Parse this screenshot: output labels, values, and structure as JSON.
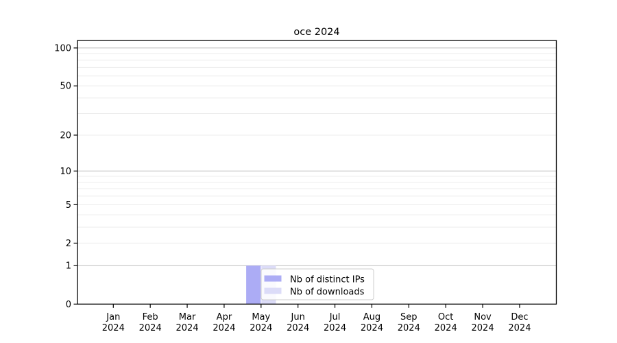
{
  "chart_data": {
    "type": "bar",
    "title": "oce 2024",
    "categories": [
      "Jan 2024",
      "Feb 2024",
      "Mar 2024",
      "Apr 2024",
      "May 2024",
      "Jun 2024",
      "Jul 2024",
      "Aug 2024",
      "Sep 2024",
      "Oct 2024",
      "Nov 2024",
      "Dec 2024"
    ],
    "series": [
      {
        "name": "Nb of distinct IPs",
        "color": "#acacf5",
        "values": [
          0,
          0,
          0,
          0,
          1,
          0,
          0,
          0,
          0,
          0,
          0,
          0
        ]
      },
      {
        "name": "Nb of downloads",
        "color": "#dcdcf8",
        "values": [
          0,
          0,
          0,
          0,
          1,
          0,
          0,
          0,
          0,
          0,
          0,
          0
        ]
      }
    ],
    "y_axis": {
      "scale": "log1p",
      "tick_labels": [
        "0",
        "1",
        "2",
        "5",
        "10",
        "20",
        "50",
        "100"
      ],
      "tick_values": [
        0,
        1,
        2,
        5,
        10,
        20,
        50,
        100
      ],
      "major_gridlines": [
        1,
        10,
        100
      ],
      "minor_gridlines": [
        2,
        3,
        4,
        5,
        6,
        7,
        8,
        9,
        20,
        30,
        40,
        50,
        60,
        70,
        80,
        90
      ],
      "range_top": 114
    },
    "x_axis": {
      "year_label": "2024"
    },
    "legend": {
      "position": "inside-bottom-near-may"
    },
    "colors": {
      "major_gridline": "#bdbdbd",
      "minor_gridline": "#ececec",
      "axis": "#000000"
    }
  }
}
